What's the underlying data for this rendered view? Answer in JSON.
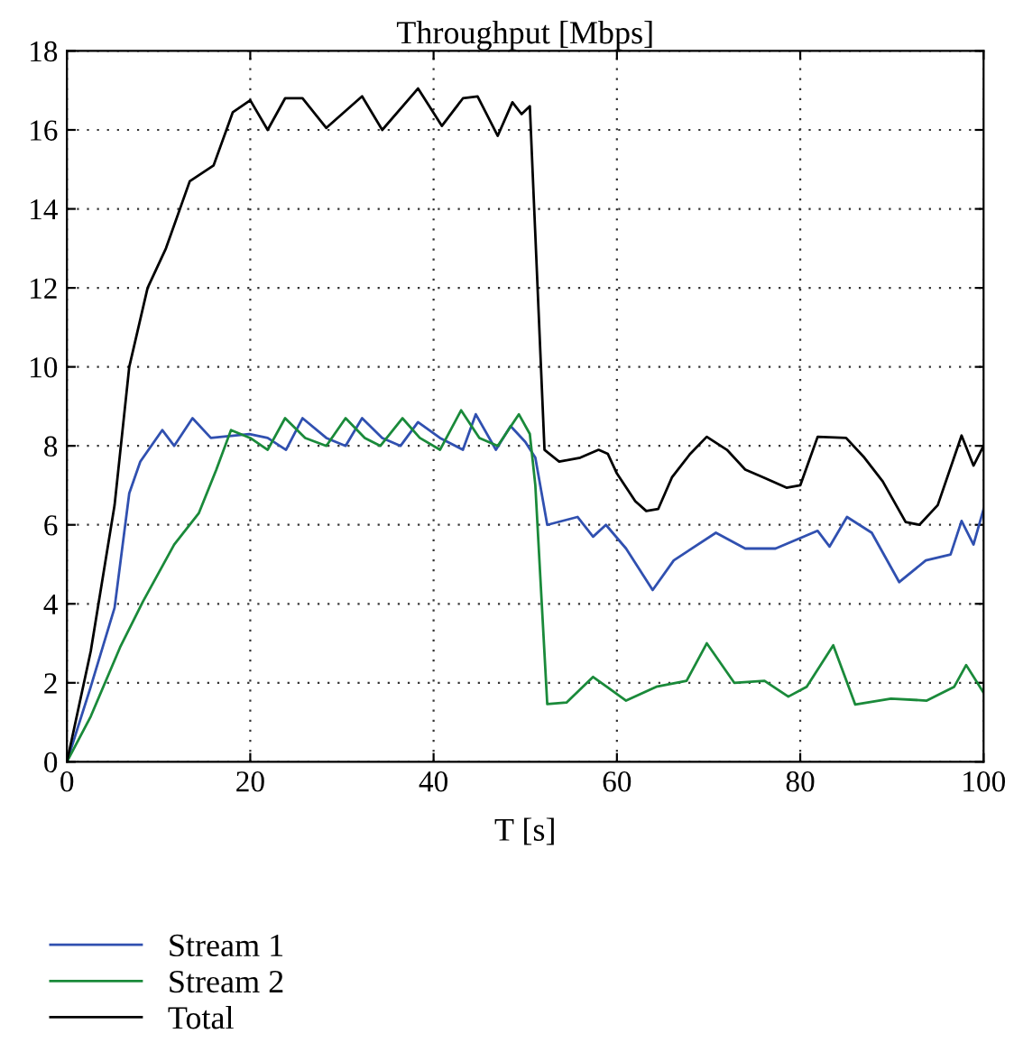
{
  "chart_data": {
    "type": "line",
    "title": "Throughput [Mbps]",
    "xlabel": "T [s]",
    "xlim": [
      0,
      100
    ],
    "xticks": [
      0,
      20,
      40,
      60,
      80,
      100
    ],
    "ylim": [
      0,
      18
    ],
    "yticks": [
      0,
      2,
      4,
      6,
      8,
      10,
      12,
      14,
      16,
      18
    ],
    "grid": true,
    "legend": "bottom left",
    "line_style": "solid",
    "marker": "none",
    "series": [
      {
        "name": "Stream 1",
        "color": "#3050b0",
        "x": [
          0,
          2.6,
          5.2,
          6.8,
          8.0,
          10.4,
          11.7,
          13.7,
          15.7,
          19.9,
          21.9,
          23.9,
          25.7,
          28.3,
          30.4,
          32.2,
          34.4,
          36.4,
          38.3,
          40.7,
          43.2,
          44.6,
          46.8,
          48.4,
          50.0,
          51.1,
          52.4,
          55.7,
          57.4,
          58.8,
          61,
          63.9,
          66.2,
          70.8,
          74,
          77.3,
          81.9,
          83.2,
          85.1,
          87.8,
          90.8,
          93.7,
          96.4,
          97.6,
          98.9,
          100
        ],
        "values": [
          0,
          1.9,
          3.9,
          6.8,
          7.6,
          8.4,
          8.0,
          8.7,
          8.2,
          8.3,
          8.2,
          7.9,
          8.7,
          8.2,
          8.0,
          8.7,
          8.2,
          8.0,
          8.6,
          8.2,
          7.9,
          8.8,
          7.9,
          8.5,
          8.1,
          7.7,
          6.0,
          6.2,
          5.7,
          6.0,
          5.4,
          4.35,
          5.1,
          5.8,
          5.4,
          5.4,
          5.85,
          5.45,
          6.2,
          5.8,
          4.55,
          5.1,
          5.25,
          6.1,
          5.5,
          6.4
        ]
      },
      {
        "name": "Stream 2",
        "color": "#1a8a3a",
        "x": [
          0,
          2.6,
          5.8,
          8.3,
          11.7,
          14.4,
          16.3,
          17.9,
          20,
          21.9,
          23.8,
          26,
          28.3,
          30.4,
          32.5,
          34.2,
          36.6,
          38.5,
          40.7,
          43,
          45,
          47,
          49.3,
          50.5,
          51.1,
          52.4,
          54.5,
          57.4,
          61,
          64.3,
          67.6,
          69.8,
          72.8,
          76.1,
          78.7,
          80.7,
          83.6,
          86,
          89.9,
          93.8,
          96.8,
          98.1,
          100
        ],
        "values": [
          0,
          1.15,
          2.9,
          4.06,
          5.5,
          6.3,
          7.4,
          8.4,
          8.2,
          7.9,
          8.7,
          8.2,
          8.0,
          8.7,
          8.2,
          8.0,
          8.7,
          8.2,
          7.9,
          8.9,
          8.2,
          8.0,
          8.8,
          8.3,
          7.0,
          1.46,
          1.5,
          2.15,
          1.55,
          1.9,
          2.05,
          3.0,
          2.0,
          2.05,
          1.65,
          1.9,
          2.95,
          1.45,
          1.6,
          1.55,
          1.9,
          2.45,
          1.75
        ]
      },
      {
        "name": "Total",
        "color": "#000000",
        "x": [
          0,
          2.6,
          5.2,
          6.8,
          8.8,
          10.8,
          13.4,
          16,
          18.1,
          20,
          21.9,
          23.8,
          25.7,
          28.3,
          32.2,
          34.4,
          38.3,
          40.9,
          43.2,
          44.8,
          47,
          48.6,
          49.6,
          50.5,
          52.1,
          53.7,
          56,
          58,
          59,
          60,
          62,
          63.2,
          64.5,
          66,
          68,
          69.8,
          72,
          74,
          76,
          78.5,
          80,
          81.9,
          85,
          87,
          89,
          91.5,
          93,
          95,
          97.6,
          98.9,
          100
        ],
        "values": [
          0,
          2.8,
          6.5,
          10.0,
          12.0,
          13.0,
          14.7,
          15.1,
          16.45,
          16.75,
          16.0,
          16.8,
          16.8,
          16.05,
          16.85,
          16.0,
          17.05,
          16.1,
          16.8,
          16.85,
          15.85,
          16.7,
          16.4,
          16.6,
          7.9,
          7.6,
          7.7,
          7.9,
          7.8,
          7.3,
          6.6,
          6.35,
          6.4,
          7.2,
          7.8,
          8.23,
          7.9,
          7.4,
          7.2,
          6.94,
          7.0,
          8.23,
          8.2,
          7.7,
          7.1,
          6.07,
          6.0,
          6.5,
          8.26,
          7.5,
          8.0
        ]
      }
    ]
  }
}
